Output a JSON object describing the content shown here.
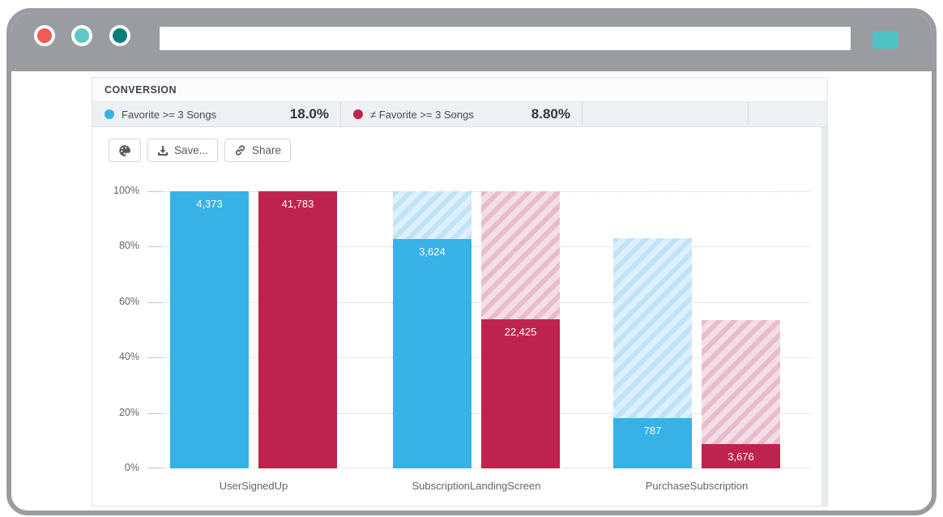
{
  "colors": {
    "chrome_gray": "#999ca1",
    "traffic_red": "#f15b55",
    "traffic_teal": "#5fc6c8",
    "traffic_dark_teal": "#0a7e78",
    "browser_action_teal": "#4dc3c5",
    "series_blue": "#38b1e6",
    "series_red": "#be234e",
    "hatch_blue_bg": "#ddf0fb",
    "hatch_blue_stripe": "#bfe3f7",
    "hatch_red_bg": "#f4dee5",
    "hatch_red_stripe": "#e9bccb"
  },
  "browser": {
    "url_value": ""
  },
  "panel": {
    "title": "CONVERSION"
  },
  "legend": [
    {
      "label": "Favorite >= 3 Songs",
      "value": "18.0%",
      "color": "#38b1e6"
    },
    {
      "label": "≠ Favorite >= 3 Songs",
      "value": "8.80%",
      "color": "#be234e"
    }
  ],
  "toolbar": {
    "save_label": "Save...",
    "share_label": "Share"
  },
  "chart_data": {
    "type": "bar",
    "subtype": "funnel",
    "title": "",
    "xlabel": "",
    "ylabel": "",
    "ylim": [
      0,
      100
    ],
    "yticks": [
      "0%",
      "20%",
      "40%",
      "60%",
      "80%",
      "100%"
    ],
    "grid": "dotted-horizontal",
    "legend_position": "top",
    "categories": [
      "UserSignedUp",
      "SubscriptionLandingScreen",
      "PurchaseSubscription"
    ],
    "series": [
      {
        "name": "Favorite >= 3 Songs",
        "color": "#38b1e6",
        "counts": [
          4373,
          3624,
          787
        ],
        "count_labels": [
          "4,373",
          "3,624",
          "787"
        ],
        "pct_of_first": [
          100,
          82.87,
          18.0
        ],
        "overall_conversion": "18.0%"
      },
      {
        "name": "≠ Favorite >= 3 Songs",
        "color": "#be234e",
        "counts": [
          41783,
          22425,
          3676
        ],
        "count_labels": [
          "41,783",
          "22,425",
          "3,676"
        ],
        "pct_of_first": [
          100,
          53.67,
          8.8
        ],
        "overall_conversion": "8.80%"
      }
    ]
  }
}
